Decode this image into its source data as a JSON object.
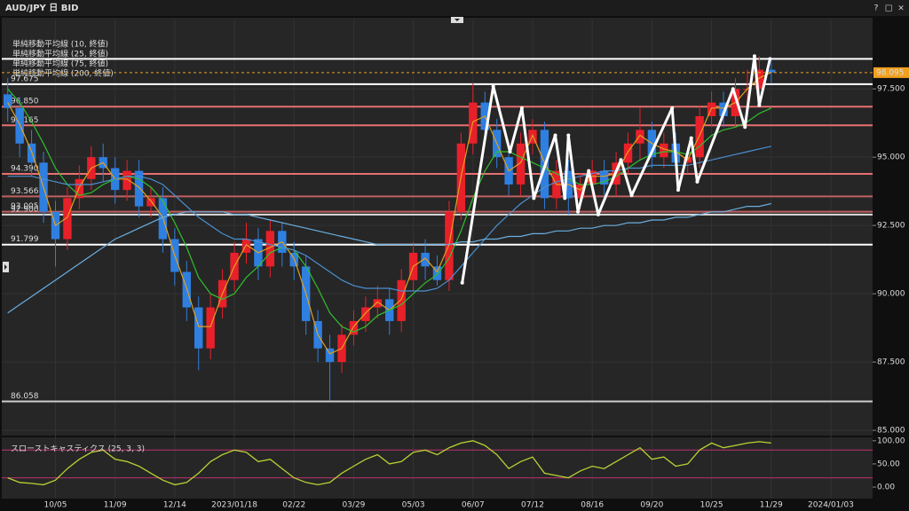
{
  "window": {
    "title": "AUD/JPY 日 BID",
    "buttons": [
      "?",
      "□",
      "×"
    ]
  },
  "chart_data": [
    {
      "type": "candlestick",
      "categories": [
        null,
        null,
        null,
        null,
        "10/05",
        null,
        null,
        null,
        null,
        "11/09",
        null,
        null,
        null,
        null,
        "12/14",
        null,
        null,
        null,
        null,
        "2023/01/18",
        null,
        null,
        null,
        null,
        "02/22",
        null,
        null,
        null,
        null,
        "03/29",
        null,
        null,
        null,
        null,
        "05/03",
        null,
        null,
        null,
        null,
        "06/07",
        null,
        null,
        null,
        null,
        "07/12",
        null,
        null,
        null,
        null,
        "08/16",
        null,
        null,
        null,
        null,
        "09/20",
        null,
        null,
        null,
        null,
        "10/25",
        null,
        null,
        null,
        null,
        "11/29",
        null,
        null,
        null,
        null,
        "2024/01/03",
        null,
        null
      ],
      "open": [
        97.3,
        96.8,
        95.5,
        94.8,
        93.0,
        92.0,
        93.5,
        94.2,
        95.0,
        94.6,
        93.8,
        94.5,
        93.2,
        93.5,
        92.0,
        90.8,
        89.5,
        88.0,
        89.5,
        90.5,
        91.5,
        92.0,
        91.0,
        92.3,
        91.5,
        91.0,
        89.0,
        88.0,
        87.5,
        88.5,
        89.0,
        89.5,
        89.8,
        89.0,
        90.5,
        91.5,
        91.0,
        90.5,
        93.0,
        95.5,
        97.0,
        96.0,
        95.0,
        94.0,
        95.5,
        96.0,
        93.5,
        94.5,
        93.5,
        94.0,
        94.5,
        94.0,
        94.8,
        95.5,
        96.0,
        95.0,
        95.5,
        94.8,
        95.0,
        96.5,
        97.0,
        96.5,
        97.5,
        97.5,
        98.2,
        null,
        null,
        null,
        null,
        null,
        null,
        null
      ],
      "high": [
        97.9,
        97.2,
        96.0,
        95.2,
        93.4,
        93.9,
        94.7,
        95.4,
        95.5,
        95.0,
        94.9,
        94.9,
        93.9,
        93.9,
        92.4,
        91.2,
        89.9,
        90.0,
        90.9,
        91.9,
        92.6,
        92.4,
        92.7,
        92.6,
        91.9,
        91.4,
        89.4,
        88.5,
        88.9,
        89.4,
        89.9,
        90.3,
        90.2,
        90.9,
        91.9,
        92.0,
        91.4,
        93.4,
        95.9,
        97.7,
        97.4,
        96.4,
        95.4,
        95.9,
        96.4,
        96.3,
        94.9,
        94.9,
        94.4,
        94.9,
        94.9,
        95.2,
        95.9,
        96.8,
        96.3,
        95.9,
        95.9,
        95.4,
        96.9,
        97.4,
        97.4,
        97.9,
        98.2,
        98.7,
        98.6,
        null,
        null,
        null,
        null,
        null,
        null,
        null
      ],
      "low": [
        96.3,
        95.0,
        94.3,
        92.6,
        91.0,
        91.6,
        93.1,
        93.8,
        94.1,
        93.3,
        93.4,
        92.8,
        92.8,
        91.5,
        90.3,
        89.0,
        87.2,
        87.6,
        89.1,
        90.1,
        91.1,
        90.5,
        90.6,
        91.0,
        90.5,
        88.5,
        87.5,
        86.1,
        87.1,
        88.1,
        88.6,
        89.1,
        88.5,
        88.6,
        90.1,
        90.5,
        90.3,
        90.1,
        92.7,
        95.1,
        95.6,
        94.6,
        93.6,
        93.6,
        95.1,
        93.1,
        93.1,
        92.9,
        93.1,
        93.6,
        93.6,
        93.6,
        94.4,
        94.9,
        94.6,
        94.6,
        94.4,
        94.4,
        94.6,
        96.1,
        96.1,
        96.1,
        96.9,
        97.1,
        97.7,
        null,
        null,
        null,
        null,
        null,
        null,
        null
      ],
      "close": [
        96.8,
        95.5,
        94.8,
        93.0,
        92.0,
        93.5,
        94.2,
        95.0,
        94.6,
        93.8,
        94.5,
        93.2,
        93.5,
        92.0,
        90.8,
        89.5,
        88.0,
        89.5,
        90.5,
        91.5,
        92.0,
        91.0,
        92.3,
        91.5,
        91.0,
        89.0,
        88.0,
        87.5,
        88.5,
        89.0,
        89.5,
        89.8,
        89.0,
        90.5,
        91.5,
        91.0,
        90.5,
        93.0,
        95.5,
        97.0,
        96.0,
        95.0,
        94.0,
        95.5,
        96.0,
        93.5,
        94.5,
        93.5,
        94.0,
        94.5,
        94.0,
        94.8,
        95.5,
        96.0,
        95.0,
        95.5,
        94.8,
        95.0,
        96.5,
        97.0,
        96.5,
        97.5,
        97.5,
        98.2,
        98.1,
        null,
        null,
        null,
        null,
        null,
        null,
        null
      ],
      "up_color": "#e8202a",
      "down_color": "#2f7fe0",
      "ylim": [
        84.84,
        100.04
      ],
      "yticks": [
        {
          "value": 85,
          "label": "85.000"
        },
        {
          "value": 87.5,
          "label": "87.500"
        },
        {
          "value": 90,
          "label": "90.000"
        },
        {
          "value": 92.5,
          "label": "92.500"
        },
        {
          "value": 95,
          "label": "95.000"
        },
        {
          "value": 97.5,
          "label": "97.500"
        }
      ],
      "series": [
        {
          "name": "単純移動平均線 (10, 終値)",
          "color": "#e0a020",
          "values": [
            97.0,
            96.2,
            95.2,
            93.9,
            92.5,
            92.8,
            93.9,
            94.6,
            94.8,
            94.2,
            94.2,
            93.9,
            93.4,
            92.8,
            91.4,
            90.2,
            88.8,
            88.8,
            90.0,
            91.0,
            91.8,
            91.5,
            91.7,
            91.9,
            91.3,
            90.0,
            88.5,
            87.8,
            88.0,
            88.8,
            89.3,
            89.7,
            89.4,
            89.8,
            91.0,
            91.3,
            90.8,
            91.8,
            94.3,
            96.3,
            96.5,
            95.5,
            94.5,
            94.8,
            95.8,
            94.8,
            94.0,
            94.0,
            93.8,
            94.3,
            94.3,
            94.4,
            95.2,
            95.8,
            95.5,
            95.3,
            95.2,
            94.9,
            95.8,
            96.8,
            96.8,
            97.0,
            97.5,
            97.9,
            98.1,
            null,
            null,
            null,
            null,
            null,
            null,
            null
          ]
        },
        {
          "name": "単純移動平均線 (25, 終値)",
          "color": "#2fc02f",
          "values": [
            97.5,
            97.0,
            96.3,
            95.5,
            94.6,
            94.0,
            93.6,
            93.7,
            94.0,
            94.2,
            94.3,
            94.2,
            93.9,
            93.4,
            92.6,
            91.7,
            90.6,
            90.0,
            89.8,
            90.0,
            90.6,
            91.0,
            91.5,
            91.7,
            91.6,
            91.0,
            90.2,
            89.3,
            88.8,
            88.6,
            88.8,
            89.2,
            89.4,
            89.6,
            90.0,
            90.4,
            90.7,
            91.3,
            92.3,
            93.5,
            94.5,
            95.2,
            95.2,
            95.0,
            94.8,
            94.6,
            94.4,
            94.2,
            94.0,
            94.0,
            94.1,
            94.3,
            94.6,
            94.9,
            95.1,
            95.2,
            95.2,
            95.1,
            95.4,
            95.8,
            96.0,
            96.1,
            96.3,
            96.6,
            96.8,
            null,
            null,
            null,
            null,
            null,
            null,
            null
          ]
        },
        {
          "name": "単純移動平均線 (75, 終値)",
          "color": "#4a8fd0",
          "values": [
            94.3,
            94.3,
            94.3,
            94.2,
            94.1,
            94.0,
            94.0,
            94.0,
            94.1,
            94.2,
            94.3,
            94.3,
            94.2,
            94.0,
            93.6,
            93.2,
            92.8,
            92.5,
            92.2,
            92.0,
            92.0,
            91.9,
            91.8,
            91.7,
            91.6,
            91.4,
            91.1,
            90.8,
            90.5,
            90.3,
            90.2,
            90.2,
            90.2,
            90.1,
            90.1,
            90.1,
            90.2,
            90.5,
            91.0,
            91.5,
            92.0,
            92.5,
            92.9,
            93.3,
            93.6,
            93.9,
            94.1,
            94.2,
            94.3,
            94.4,
            94.5,
            94.5,
            94.6,
            94.6,
            94.7,
            94.7,
            94.7,
            94.7,
            94.8,
            94.9,
            95.0,
            95.1,
            95.2,
            95.3,
            95.4,
            null,
            null,
            null,
            null,
            null,
            null,
            null
          ]
        },
        {
          "name": "単純移動平均線 (200, 終値)",
          "color": "#6aaee0",
          "values": [
            89.3,
            89.6,
            89.9,
            90.2,
            90.5,
            90.8,
            91.1,
            91.4,
            91.7,
            92.0,
            92.2,
            92.4,
            92.6,
            92.8,
            92.9,
            93.0,
            93.0,
            93.0,
            93.0,
            92.9,
            92.9,
            92.8,
            92.7,
            92.6,
            92.5,
            92.4,
            92.3,
            92.2,
            92.1,
            92.0,
            91.9,
            91.8,
            91.8,
            91.8,
            91.8,
            91.8,
            91.8,
            91.8,
            91.9,
            91.9,
            92.0,
            92.0,
            92.1,
            92.1,
            92.2,
            92.2,
            92.3,
            92.3,
            92.4,
            92.4,
            92.5,
            92.5,
            92.6,
            92.6,
            92.7,
            92.7,
            92.8,
            92.8,
            92.9,
            93.0,
            93.0,
            93.1,
            93.2,
            93.2,
            93.3,
            null,
            null,
            null,
            null,
            null,
            null,
            null
          ]
        }
      ],
      "levels": [
        {
          "value": 98.6,
          "color": "#ffffff"
        },
        {
          "value": 97.675,
          "label": "97.675",
          "color": "#ffffff"
        },
        {
          "value": 96.85,
          "label": "96.850",
          "color": "#e87070"
        },
        {
          "value": 96.165,
          "label": "96.165",
          "color": "#e87070"
        },
        {
          "value": 94.39,
          "label": "94.390",
          "color": "#e87070"
        },
        {
          "value": 93.566,
          "label": "93.566",
          "color": "#c06060"
        },
        {
          "value": 93.005,
          "label": "93.005",
          "color": "#c06060"
        },
        {
          "value": 92.9,
          "label": "92.900",
          "color": "#dddddd"
        },
        {
          "value": 91.799,
          "label": "91.799",
          "color": "#ffffff"
        },
        {
          "value": 86.058,
          "label": "86.058",
          "color": "#cccccc"
        }
      ],
      "zigzag": {
        "color": "#ffffff",
        "x": [
          38.1,
          40.7,
          42.1,
          43.1,
          44.1,
          45.9,
          46.7,
          47.0,
          47.8,
          48.7,
          49.5,
          51.4,
          52.3,
          55.7,
          56.2,
          57.3,
          57.8,
          60.8,
          61.8,
          62.6,
          63.0,
          63.9
        ],
        "values": [
          90.4,
          97.6,
          95.2,
          96.8,
          93.5,
          95.8,
          93.5,
          95.8,
          93.0,
          94.5,
          92.9,
          94.9,
          93.6,
          96.8,
          93.8,
          95.7,
          94.1,
          97.5,
          96.1,
          98.7,
          96.9,
          98.6
        ]
      },
      "last_price": {
        "value": 98.095,
        "label": "98.095",
        "color": "#f0a020"
      }
    },
    {
      "type": "line",
      "title": "スローストキャスティクス (25, 3, 3)",
      "ylim": [
        -21,
        115
      ],
      "yticks": [
        {
          "value": 0,
          "label": "0.00"
        },
        {
          "value": 50,
          "label": "50.00"
        },
        {
          "value": 100,
          "label": "100.00"
        }
      ],
      "levels": [
        {
          "value": 20,
          "color": "#c03070"
        },
        {
          "value": 80,
          "color": "#c03070"
        }
      ],
      "series": [
        {
          "color": "#b5d334",
          "values": [
            20,
            10,
            8,
            5,
            15,
            40,
            60,
            75,
            80,
            60,
            55,
            45,
            30,
            15,
            5,
            10,
            30,
            55,
            70,
            80,
            75,
            55,
            60,
            40,
            20,
            10,
            5,
            10,
            30,
            45,
            60,
            70,
            50,
            55,
            75,
            80,
            70,
            85,
            95,
            100,
            90,
            70,
            40,
            55,
            65,
            30,
            25,
            20,
            35,
            45,
            40,
            55,
            70,
            85,
            60,
            65,
            45,
            50,
            80,
            95,
            85,
            90,
            95,
            98,
            95,
            null,
            null,
            null,
            null,
            null,
            null,
            null
          ]
        }
      ]
    }
  ]
}
